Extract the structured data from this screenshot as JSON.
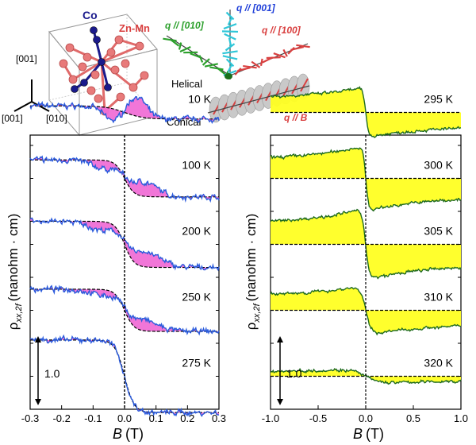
{
  "schematic": {
    "co_label": "Co",
    "znmn_label": "Zn-Mn",
    "axis_001_top": "[001]",
    "axis_001_left": "[001]",
    "axis_010": "[010]",
    "q010": "q // [010]",
    "q001": "q // [001]",
    "q100": "q // [100]",
    "helical": "Helical",
    "conical": "Conical",
    "qB": "q // B",
    "colors": {
      "co": "#1a1a8c",
      "znmn": "#e87a7a",
      "green": "#2ca02c",
      "cyan": "#2fc6d8",
      "red": "#d94040"
    }
  },
  "chart_data": [
    {
      "type": "line",
      "xlabel_var": "B",
      "xlabel_unit": "(T)",
      "ylabel": "ρxx,2f (nanohm · cm)",
      "xlim": [
        -0.3,
        0.3
      ],
      "xticks": [
        "-0.3",
        "-0.2",
        "-0.1",
        "0.0",
        "0.1",
        "0.2",
        "0.3"
      ],
      "scale_bar": "1.0",
      "colors": {
        "line": "#2a5bdc",
        "fill": "#f06fd6",
        "baseline": "#000000"
      },
      "series": [
        {
          "name": "10 K",
          "offset": 4.5,
          "step": 0.1,
          "width": 0.06,
          "bump": 0.3,
          "bumpCenter": 0.04,
          "bumpWidth": 0.04
        },
        {
          "name": "100 K",
          "offset": 3.5,
          "step": 0.28,
          "width": 0.03,
          "bump": 0.22,
          "bumpCenter": 0.06,
          "bumpWidth": 0.06
        },
        {
          "name": "200 K",
          "offset": 2.5,
          "step": 0.35,
          "width": 0.03,
          "bump": 0.24,
          "bumpCenter": 0.06,
          "bumpWidth": 0.07
        },
        {
          "name": "250 K",
          "offset": 1.5,
          "step": 0.32,
          "width": 0.03,
          "bump": 0.18,
          "bumpCenter": 0.05,
          "bumpWidth": 0.07
        },
        {
          "name": "275 K",
          "offset": 0.5,
          "step": 0.55,
          "width": 0.03,
          "bump": 0.0,
          "bumpCenter": 0.05,
          "bumpWidth": 0.05
        }
      ]
    },
    {
      "type": "line",
      "xlabel_var": "B",
      "xlabel_unit": "(T)",
      "ylabel": "ρxx,2f (nanohm · cm)",
      "xlim": [
        -1.0,
        1.0
      ],
      "xticks": [
        "-1.0",
        "-0.5",
        "0.0",
        "0.5",
        "1.0"
      ],
      "scale_bar": "1.0",
      "colors": {
        "line": "#1f6b1f",
        "fill": "#ffff22",
        "baseline": "#000000"
      },
      "series": [
        {
          "name": "295 K",
          "offset": 4.5,
          "amp": 0.38,
          "width": 0.03
        },
        {
          "name": "300 K",
          "offset": 3.5,
          "amp": 0.5,
          "width": 0.03
        },
        {
          "name": "305 K",
          "offset": 2.5,
          "amp": 0.55,
          "width": 0.04
        },
        {
          "name": "310 K",
          "offset": 1.5,
          "amp": 0.38,
          "width": 0.06
        },
        {
          "name": "320 K",
          "offset": 0.5,
          "amp": 0.12,
          "width": 0.15
        }
      ]
    }
  ]
}
